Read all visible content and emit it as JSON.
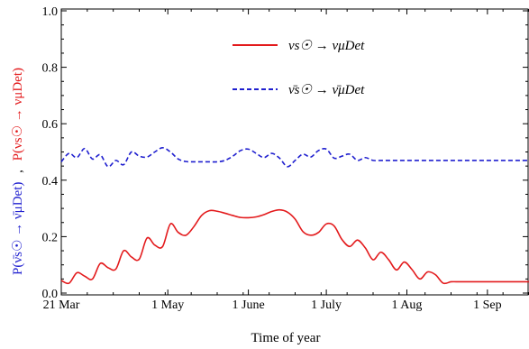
{
  "chart_data": {
    "type": "line",
    "xlabel": "Time of year",
    "x_ticks": [
      "21 Mar",
      "1 May",
      "1 June",
      "1 July",
      "1 Aug",
      "1 Sep"
    ],
    "x_tick_days": [
      0,
      41,
      72,
      102,
      133,
      164
    ],
    "xlim_days": [
      0,
      180
    ],
    "ylim": [
      0,
      1.0
    ],
    "y_ticks": [
      "0.0",
      "0.2",
      "0.4",
      "0.6",
      "0.8",
      "1.0"
    ],
    "y_tick_values": [
      0,
      0.2,
      0.4,
      0.6,
      0.8,
      1.0
    ],
    "ylabel": {
      "red_part": "P(νs☉ → νμDet)",
      "separator": ",",
      "blue_part": "P(ν̄s☉ → ν̄μDet)"
    },
    "series": [
      {
        "name": "νs☉ → νμDet",
        "color": "#e31a1c",
        "style": "solid",
        "x": [
          0,
          3,
          6,
          9,
          12,
          15,
          18,
          21,
          24,
          27,
          30,
          33,
          36,
          39,
          42,
          45,
          48,
          51,
          54,
          57,
          60,
          63,
          66,
          69,
          72,
          75,
          78,
          81,
          84,
          87,
          90,
          93,
          96,
          99,
          102,
          105,
          108,
          111,
          114,
          117,
          120,
          123,
          126,
          129,
          132,
          135,
          138,
          141,
          144,
          147,
          150,
          153,
          156,
          159,
          162,
          165,
          168,
          171,
          174,
          177,
          180
        ],
        "y": [
          0.045,
          0.035,
          0.072,
          0.06,
          0.05,
          0.105,
          0.09,
          0.085,
          0.15,
          0.128,
          0.12,
          0.195,
          0.17,
          0.165,
          0.245,
          0.215,
          0.205,
          0.235,
          0.275,
          0.292,
          0.29,
          0.283,
          0.275,
          0.268,
          0.267,
          0.27,
          0.278,
          0.289,
          0.295,
          0.287,
          0.262,
          0.218,
          0.205,
          0.215,
          0.245,
          0.238,
          0.19,
          0.165,
          0.188,
          0.16,
          0.118,
          0.145,
          0.118,
          0.082,
          0.11,
          0.083,
          0.05,
          0.075,
          0.065,
          0.035,
          0.04,
          0.04,
          0.04,
          0.04,
          0.04,
          0.04,
          0.04,
          0.04,
          0.04,
          0.04,
          0.04
        ]
      },
      {
        "name": "ν̄s☉ → ν̄μDet",
        "color": "#1f1fcf",
        "style": "dashed",
        "x": [
          0,
          3,
          6,
          9,
          12,
          15,
          18,
          21,
          24,
          27,
          30,
          33,
          36,
          39,
          42,
          45,
          48,
          51,
          54,
          57,
          60,
          63,
          66,
          69,
          72,
          75,
          78,
          81,
          84,
          87,
          90,
          93,
          96,
          99,
          102,
          105,
          108,
          111,
          114,
          117,
          120,
          123,
          126,
          129,
          132,
          135,
          138,
          141,
          144,
          147,
          150,
          153,
          156,
          159,
          162,
          165,
          168,
          171,
          174,
          177,
          180
        ],
        "y": [
          0.465,
          0.495,
          0.48,
          0.512,
          0.475,
          0.49,
          0.448,
          0.47,
          0.455,
          0.5,
          0.485,
          0.482,
          0.5,
          0.515,
          0.5,
          0.475,
          0.466,
          0.465,
          0.465,
          0.465,
          0.465,
          0.47,
          0.485,
          0.505,
          0.51,
          0.495,
          0.48,
          0.495,
          0.478,
          0.448,
          0.47,
          0.492,
          0.482,
          0.505,
          0.51,
          0.478,
          0.485,
          0.492,
          0.47,
          0.48,
          0.47,
          0.47,
          0.47,
          0.47,
          0.47,
          0.47,
          0.47,
          0.47,
          0.47,
          0.47,
          0.47,
          0.47,
          0.47,
          0.47,
          0.47,
          0.47,
          0.47,
          0.47,
          0.47,
          0.47,
          0.47
        ]
      }
    ],
    "legend_placement": "top-right",
    "grid": false
  }
}
